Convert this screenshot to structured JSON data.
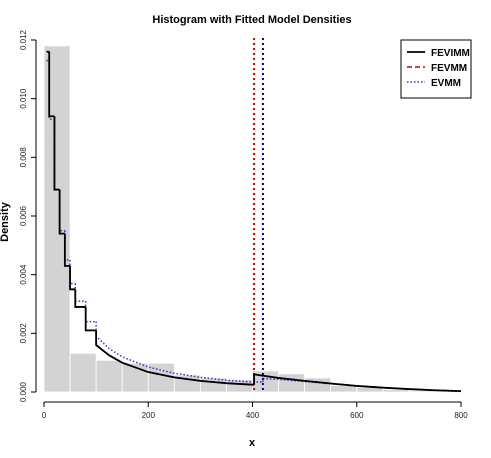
{
  "chart_data": {
    "type": "histogram",
    "title": "Histogram with Fitted Model Densities",
    "xlabel": "x",
    "ylabel": "Density",
    "xlim": [
      0,
      800
    ],
    "ylim": [
      0,
      0.012
    ],
    "x_ticks": [
      0,
      200,
      400,
      600,
      800
    ],
    "x_tick_labels": [
      "0",
      "200",
      "400",
      "600",
      "800"
    ],
    "y_ticks": [
      0,
      0.002,
      0.004,
      0.006,
      0.008,
      0.01,
      0.012
    ],
    "y_tick_labels": [
      "0.000",
      "0.002",
      "0.004",
      "0.006",
      "0.008",
      "0.010",
      "0.012"
    ],
    "grid": false,
    "legend_position": "top-right",
    "histogram": {
      "bin_edges": [
        0,
        50,
        100,
        150,
        200,
        250,
        300,
        350,
        400,
        450,
        500,
        550,
        600,
        650,
        700,
        750,
        800
      ],
      "densities": [
        0.0118,
        0.00132,
        0.00108,
        0.00098,
        0.00098,
        0.00058,
        0.00048,
        0.00042,
        0.00072,
        0.00062,
        0.00048,
        0.00022,
        0.00016,
        8e-05,
        4e-05,
        2e-05
      ],
      "color": "#d3d3d3"
    },
    "thresholds": [
      {
        "x": 403,
        "color": "#cc0000"
      },
      {
        "x": 420,
        "color": "#00008b"
      }
    ],
    "series": [
      {
        "name": "FEVIMM",
        "color": "#000000",
        "style": "solid",
        "x": [
          5,
          10,
          20,
          30,
          40,
          50,
          60,
          80,
          100,
          125,
          150,
          200,
          250,
          300,
          350,
          400,
          403,
          450,
          500,
          550,
          600,
          650,
          700,
          750,
          800
        ],
        "y": [
          0.0116,
          0.0094,
          0.0069,
          0.0054,
          0.0043,
          0.0035,
          0.0029,
          0.0021,
          0.0016,
          0.00125,
          0.001,
          0.00068,
          0.0005,
          0.00038,
          0.0003,
          0.00025,
          0.0006,
          0.00048,
          0.00038,
          0.00029,
          0.00021,
          0.00015,
          0.0001,
          6e-05,
          3e-05
        ]
      },
      {
        "name": "FEVMM",
        "color": "#cc0000",
        "style": "dashed",
        "x": [
          5,
          10,
          20,
          30,
          40,
          50,
          60,
          80,
          100,
          125,
          150,
          200,
          250,
          300,
          350,
          400,
          403,
          450,
          500,
          550,
          600,
          650,
          700,
          750,
          800
        ],
        "y": [
          0.0116,
          0.0094,
          0.0069,
          0.0054,
          0.0043,
          0.0035,
          0.0029,
          0.0021,
          0.0016,
          0.00125,
          0.001,
          0.00068,
          0.0005,
          0.00038,
          0.0003,
          0.00025,
          0.0006,
          0.00048,
          0.00038,
          0.00029,
          0.00021,
          0.00015,
          0.0001,
          6e-05,
          3e-05
        ]
      },
      {
        "name": "EVMM",
        "color": "#3333cc",
        "style": "dotted",
        "x": [
          5,
          10,
          20,
          30,
          40,
          50,
          60,
          80,
          100,
          125,
          150,
          200,
          250,
          300,
          350,
          400,
          420,
          450,
          500,
          550,
          600,
          650,
          700,
          750,
          800
        ],
        "y": [
          0.0113,
          0.0093,
          0.0069,
          0.0055,
          0.0045,
          0.0037,
          0.0031,
          0.0024,
          0.0019,
          0.00148,
          0.0012,
          0.00085,
          0.00064,
          0.0005,
          0.0004,
          0.00034,
          0.00046,
          0.00043,
          0.00036,
          0.00028,
          0.0002,
          0.00014,
          9e-05,
          5e-05,
          2e-05
        ]
      }
    ]
  }
}
